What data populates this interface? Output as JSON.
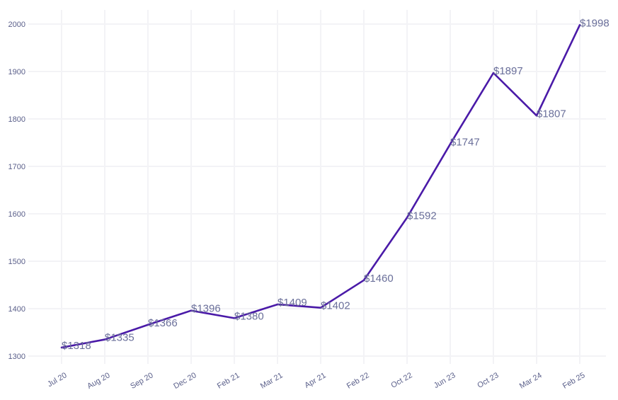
{
  "chart_data": {
    "type": "line",
    "title": "",
    "xlabel": "",
    "ylabel": "",
    "categories": [
      "Jul 20",
      "Aug 20",
      "Sep 20",
      "Dec 20",
      "Feb 21",
      "Mar 21",
      "Apr 21",
      "Feb 22",
      "Oct 22",
      "Jun 23",
      "Oct 23",
      "Mar 24",
      "Feb 25"
    ],
    "values": [
      1318,
      1335,
      1366,
      1396,
      1380,
      1409,
      1402,
      1460,
      1592,
      1747,
      1897,
      1807,
      1998
    ],
    "data_labels": [
      "$1318",
      "$1335",
      "$1366",
      "$1396",
      "$1380",
      "$1409",
      "$1402",
      "$1460",
      "$1592",
      "$1747",
      "$1897",
      "$1807",
      "$1998"
    ],
    "ylim": [
      1300,
      2000
    ],
    "yticks": [
      1300,
      1400,
      1500,
      1600,
      1700,
      1800,
      1900,
      2000
    ],
    "grid": true,
    "legend": "none",
    "line_color": "#4a1aa8"
  }
}
